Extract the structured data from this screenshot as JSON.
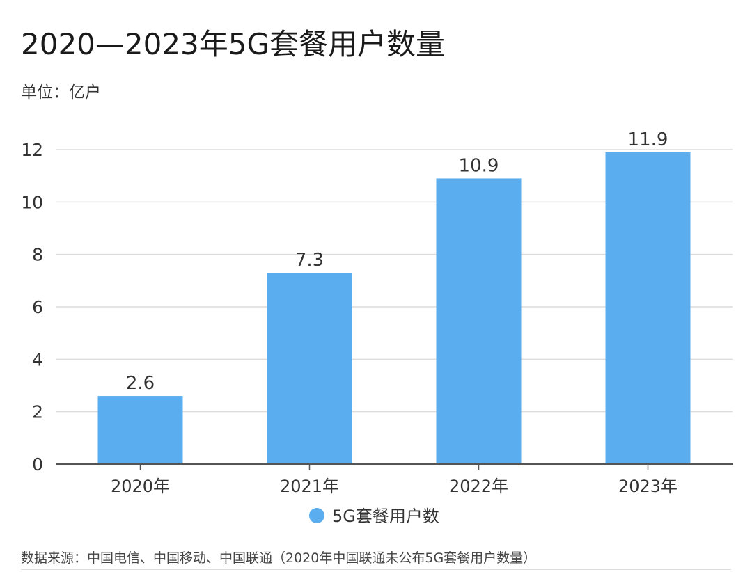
{
  "header": {
    "title": "2020—2023年5G套餐用户数量",
    "unit": "单位：亿户"
  },
  "footer": {
    "source": "数据来源：中国电信、中国移动、中国联通（2020年中国联通未公布5G套餐用户数量）"
  },
  "chart_data": {
    "type": "bar",
    "title": "2020—2023年5G套餐用户数量",
    "categories": [
      "2020年",
      "2021年",
      "2022年",
      "2023年"
    ],
    "series": [
      {
        "name": "5G套餐用户数",
        "values": [
          2.6,
          7.3,
          10.9,
          11.9
        ],
        "color": "#5aaef0"
      }
    ],
    "data_labels": [
      "2.6",
      "7.3",
      "10.9",
      "11.9"
    ],
    "ylim": [
      0,
      12
    ],
    "yticks": [
      0,
      2,
      4,
      6,
      8,
      10,
      12
    ],
    "xlabel": "",
    "ylabel": "",
    "grid": true,
    "legend": "bottom-center",
    "colors": {
      "bar": "#5aaef0",
      "grid": "#dcdcdc",
      "axis": "#555555"
    }
  }
}
